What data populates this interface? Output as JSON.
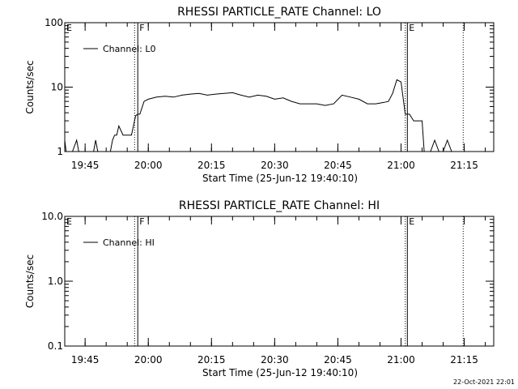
{
  "footer_date": "22-Oct-2021 22:01",
  "chart_data": [
    {
      "type": "line",
      "title": "RHESSI PARTICLE_RATE Channel: LO",
      "xlabel": "Start Time (25-Jun-12 19:40:10)",
      "ylabel": "Counts/sec",
      "y_scale": "log",
      "ylim": [
        1,
        100
      ],
      "y_ticks": [
        1,
        10,
        100
      ],
      "y_tick_labels": [
        "1",
        "10",
        "100"
      ],
      "xlim": [
        "19:40:10",
        "21:22:00"
      ],
      "x_ticks": [
        "19:45",
        "20:00",
        "20:15",
        "20:30",
        "20:45",
        "21:00",
        "21:15"
      ],
      "legend": "top-left",
      "series": [
        {
          "name": "Channel: L0",
          "x": [
            "19:40:10",
            "19:40:30",
            "19:41:00",
            "19:42:00",
            "19:43:00",
            "19:43:30",
            "19:44:00",
            "19:44:30",
            "19:45:00",
            "19:46:00",
            "19:47:00",
            "19:47:30",
            "19:48:00",
            "19:49:00",
            "19:50:00",
            "19:51:00",
            "19:51:30",
            "19:52:00",
            "19:52:30",
            "19:53:00",
            "19:54:00",
            "19:55:00",
            "19:56:00",
            "19:57:00",
            "19:57:30",
            "19:58:00",
            "19:59:00",
            "20:00:00",
            "20:02:00",
            "20:04:00",
            "20:06:00",
            "20:08:00",
            "20:10:00",
            "20:12:00",
            "20:14:00",
            "20:16:00",
            "20:18:00",
            "20:20:00",
            "20:22:00",
            "20:24:00",
            "20:26:00",
            "20:28:00",
            "20:30:00",
            "20:32:00",
            "20:34:00",
            "20:36:00",
            "20:38:00",
            "20:40:00",
            "20:42:00",
            "20:44:00",
            "20:46:00",
            "20:48:00",
            "20:50:00",
            "20:52:00",
            "20:54:00",
            "20:56:00",
            "20:57:00",
            "20:58:00",
            "20:59:00",
            "21:00:00",
            "21:01:00",
            "21:01:30",
            "21:02:00",
            "21:03:00",
            "21:04:00",
            "21:05:00",
            "21:05:30",
            "21:06:00",
            "21:07:00",
            "21:08:00",
            "21:09:00",
            "21:10:00",
            "21:11:00",
            "21:12:00",
            "21:13:00",
            "21:14:00",
            "21:15:00",
            "21:16:00"
          ],
          "y": [
            1.5,
            1.0,
            1.0,
            1.0,
            1.5,
            1.0,
            1.0,
            1.0,
            1.0,
            1.0,
            1.0,
            1.5,
            1.0,
            1.0,
            1.0,
            1.0,
            1.5,
            1.8,
            1.8,
            2.5,
            1.8,
            1.8,
            1.8,
            3.6,
            3.8,
            3.8,
            6.0,
            6.5,
            7.0,
            7.2,
            7.0,
            7.5,
            7.8,
            8.0,
            7.5,
            7.8,
            8.0,
            8.2,
            7.5,
            7.0,
            7.5,
            7.2,
            6.5,
            6.8,
            6.0,
            5.5,
            5.5,
            5.5,
            5.2,
            5.5,
            7.5,
            7.0,
            6.5,
            5.5,
            5.5,
            5.8,
            6.0,
            8.0,
            13.0,
            12.0,
            3.8,
            3.8,
            3.8,
            3.0,
            3.0,
            3.0,
            1.0,
            1.0,
            1.0,
            1.5,
            1.0,
            1.0,
            1.5,
            1.0,
            1.0,
            1.0,
            1.0,
            1.0
          ]
        }
      ],
      "markers": [
        {
          "label": "E",
          "time": "19:40:10",
          "line": "none"
        },
        {
          "label": "F",
          "time": "19:57:30",
          "line": "solid"
        },
        {
          "label": "E",
          "time": "21:01:30",
          "line": "solid"
        }
      ],
      "dotted_lines": [
        "19:56:45",
        "21:01:00",
        "21:14:45"
      ]
    },
    {
      "type": "line",
      "title": "RHESSI PARTICLE_RATE Channel: HI",
      "xlabel": "Start Time (25-Jun-12 19:40:10)",
      "ylabel": "Counts/sec",
      "y_scale": "log",
      "ylim": [
        0.1,
        10
      ],
      "y_ticks": [
        0.1,
        1,
        10
      ],
      "y_tick_labels": [
        "0.1",
        "1.0",
        "10.0"
      ],
      "xlim": [
        "19:40:10",
        "21:22:00"
      ],
      "x_ticks": [
        "19:45",
        "20:00",
        "20:15",
        "20:30",
        "20:45",
        "21:00",
        "21:15"
      ],
      "legend": "top-left",
      "series": [
        {
          "name": "Channel: HI",
          "x": [],
          "y": []
        }
      ],
      "markers": [
        {
          "label": "E",
          "time": "19:40:10",
          "line": "none"
        },
        {
          "label": "F",
          "time": "19:57:30",
          "line": "solid"
        },
        {
          "label": "E",
          "time": "21:01:30",
          "line": "solid"
        }
      ],
      "dotted_lines": [
        "19:56:45",
        "21:01:00",
        "21:14:45"
      ]
    }
  ]
}
